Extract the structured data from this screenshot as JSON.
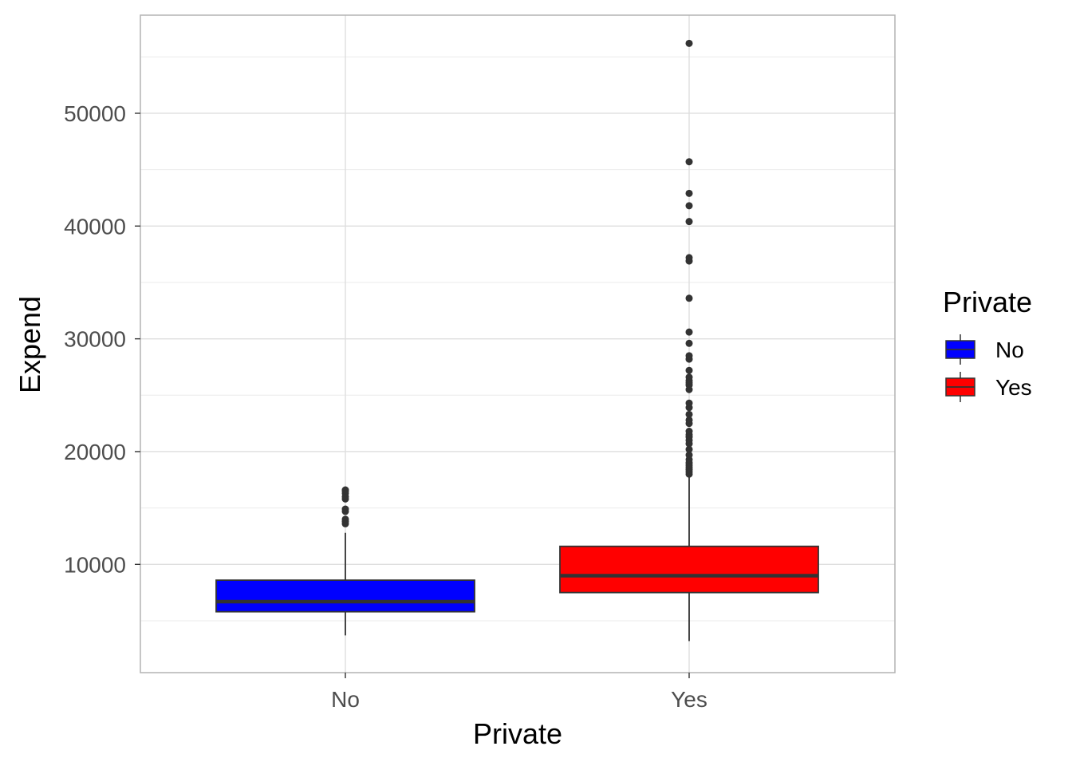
{
  "chart_data": {
    "type": "boxplot",
    "xlabel": "Private",
    "ylabel": "Expend",
    "ylim": [
      400,
      58700
    ],
    "yticks": [
      10000,
      20000,
      30000,
      40000,
      50000
    ],
    "grid": true,
    "legend": {
      "title": "Private",
      "position": "right",
      "entries": [
        "No",
        "Yes"
      ]
    },
    "categories": [
      "No",
      "Yes"
    ],
    "series": [
      {
        "category": "No",
        "color": "#0000ff",
        "min": 3700,
        "q1": 5800,
        "median": 6700,
        "q3": 8600,
        "max": 12800,
        "outliers": [
          13600,
          13800,
          14000,
          14700,
          14900,
          15800,
          16000,
          16300,
          16500,
          16600
        ]
      },
      {
        "category": "Yes",
        "color": "#ff0000",
        "min": 3200,
        "q1": 7500,
        "median": 9000,
        "q3": 11600,
        "max": 17900,
        "outliers": [
          18000,
          18200,
          18400,
          18600,
          18800,
          19000,
          19300,
          19700,
          20200,
          20700,
          21000,
          21300,
          21500,
          21800,
          22500,
          22800,
          23300,
          23900,
          24300,
          25500,
          25900,
          26100,
          26300,
          26600,
          27200,
          28200,
          28500,
          29600,
          30600,
          33600,
          36900,
          37200,
          40400,
          41800,
          42900,
          45700,
          56200
        ]
      }
    ]
  }
}
